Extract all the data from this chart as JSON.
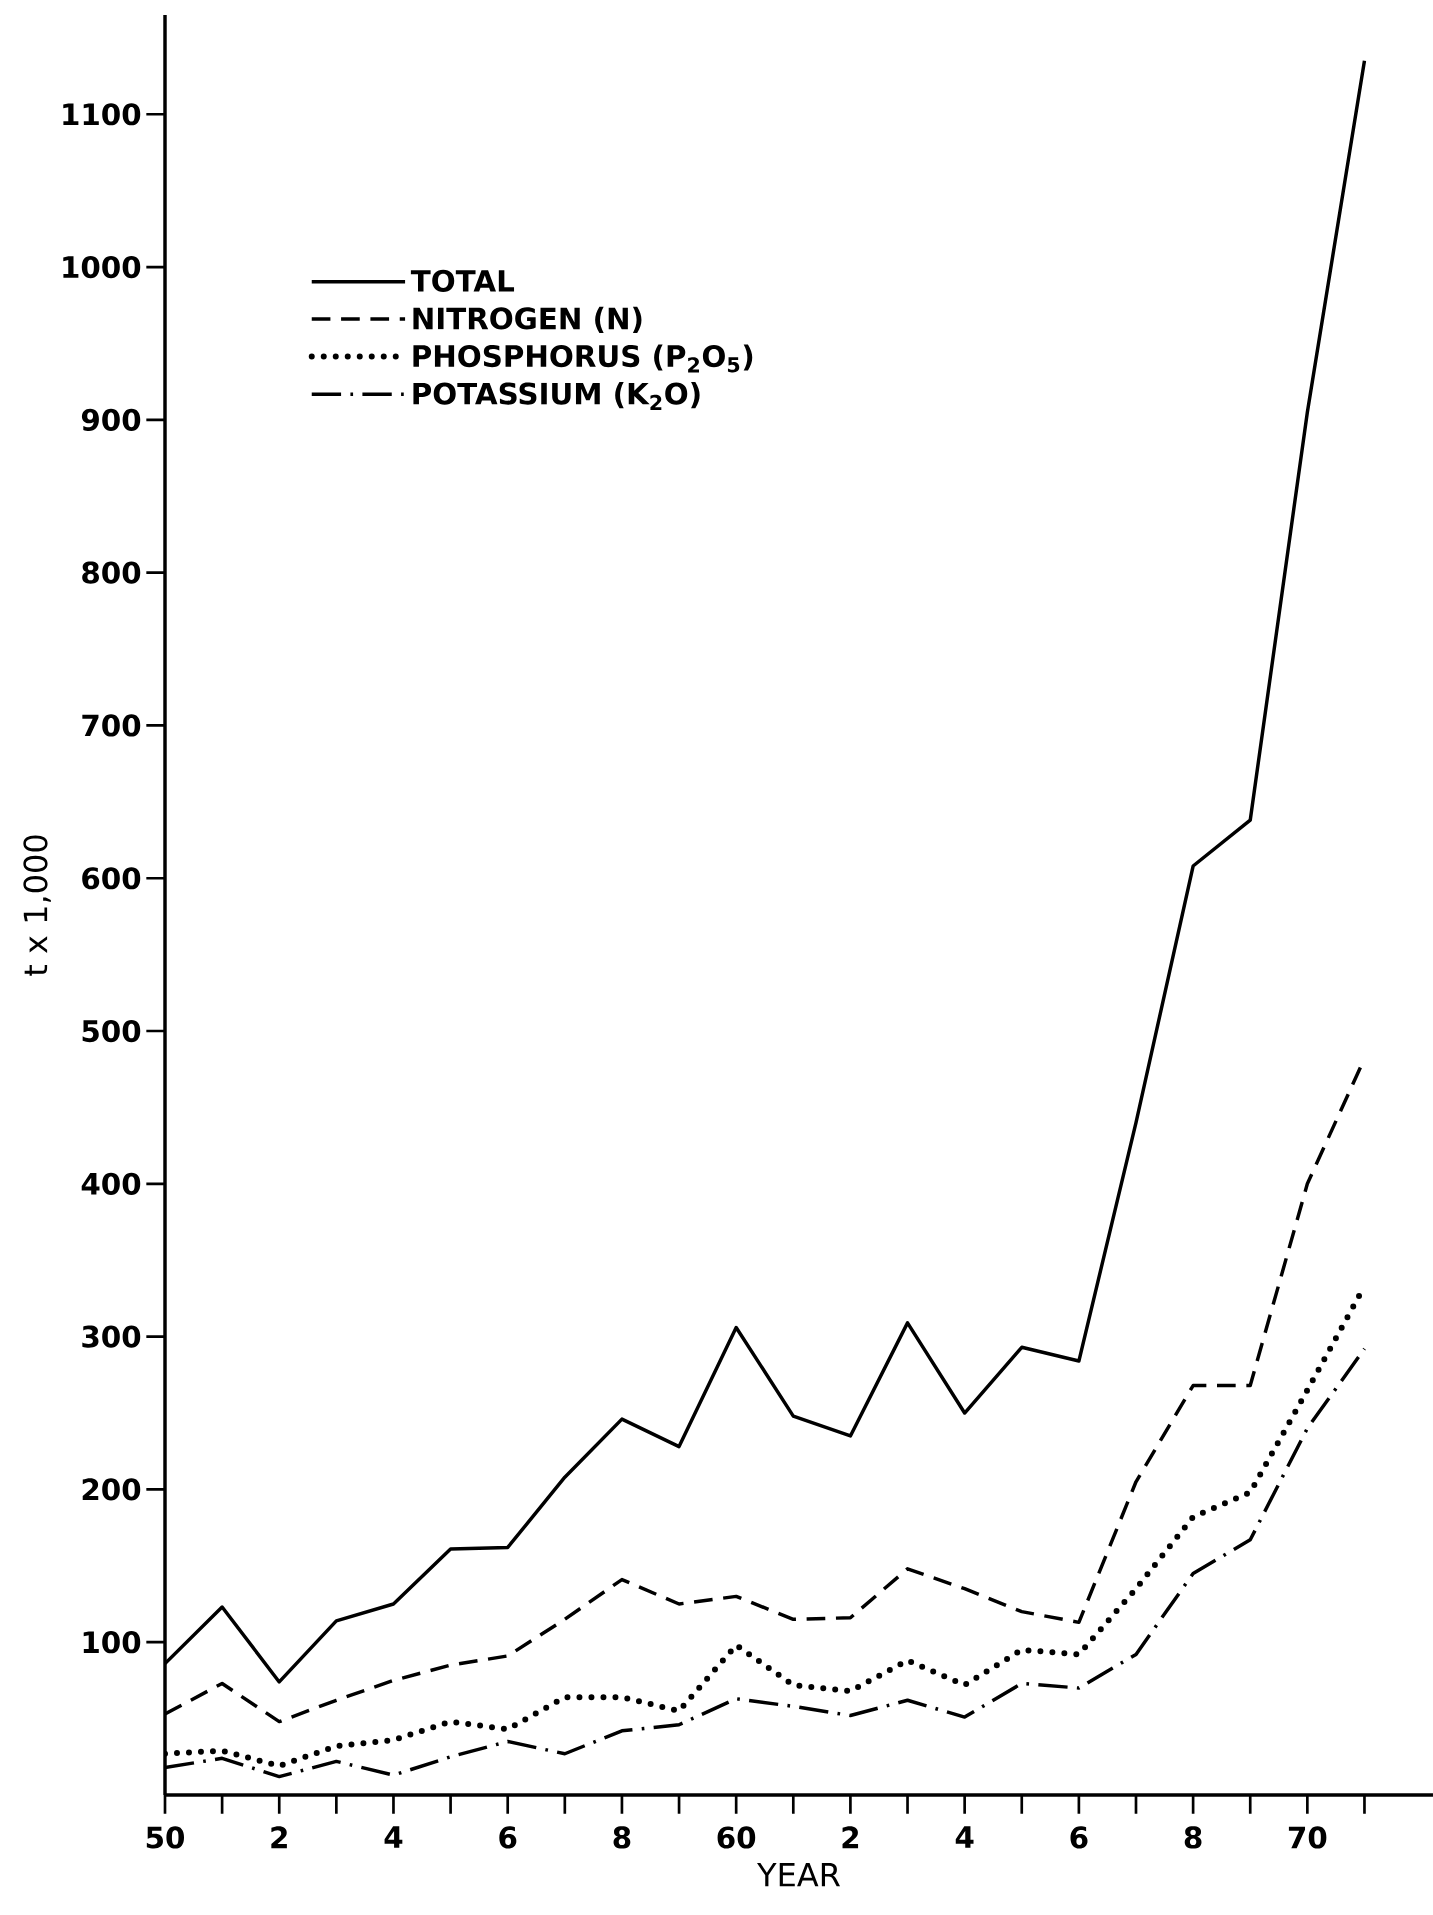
{
  "chart_data": {
    "type": "line",
    "xlabel": "YEAR",
    "ylabel": "t x 1,000",
    "categories": [
      "50",
      null,
      "2",
      null,
      "4",
      null,
      "6",
      null,
      "8",
      null,
      "60",
      null,
      "2",
      null,
      "4",
      null,
      "6",
      null,
      "8",
      null,
      "70",
      null
    ],
    "series": [
      {
        "name": "TOTAL",
        "color": "#000000",
        "line_style": "solid",
        "values": [
          86,
          123,
          74,
          114,
          125,
          161,
          162,
          208,
          246,
          228,
          306,
          248,
          235,
          309,
          250,
          293,
          284,
          440,
          608,
          638,
          905,
          1135
        ]
      },
      {
        "name": "NITROGEN (N)",
        "color": "#000000",
        "line_style": "dashed",
        "values": [
          53,
          73,
          48,
          62,
          75,
          85,
          91,
          115,
          141,
          125,
          130,
          115,
          116,
          148,
          135,
          120,
          113,
          205,
          268,
          268,
          400,
          482
        ]
      },
      {
        "name": "PHOSPHORUS (P$_{2}$O$_{5}$)",
        "color": "#000000",
        "line_style": "dotted",
        "values": [
          27,
          29,
          19,
          32,
          36,
          48,
          43,
          64,
          64,
          55,
          98,
          72,
          68,
          88,
          72,
          95,
          92,
          135,
          182,
          198,
          265,
          333
        ]
      },
      {
        "name": "POTASSIUM (K$_{2}$O)",
        "color": "#000000",
        "line_style": "dashdot",
        "values": [
          18,
          24,
          12,
          22,
          13,
          25,
          35,
          27,
          42,
          46,
          63,
          58,
          52,
          62,
          51,
          73,
          70,
          92,
          145,
          167,
          240,
          292
        ]
      }
    ],
    "ylim": [
      0,
      1165
    ],
    "yticks": [
      100,
      200,
      300,
      400,
      500,
      600,
      700,
      800,
      900,
      1000,
      1100
    ],
    "legend": "top left",
    "grid": false,
    "marker": "none"
  }
}
